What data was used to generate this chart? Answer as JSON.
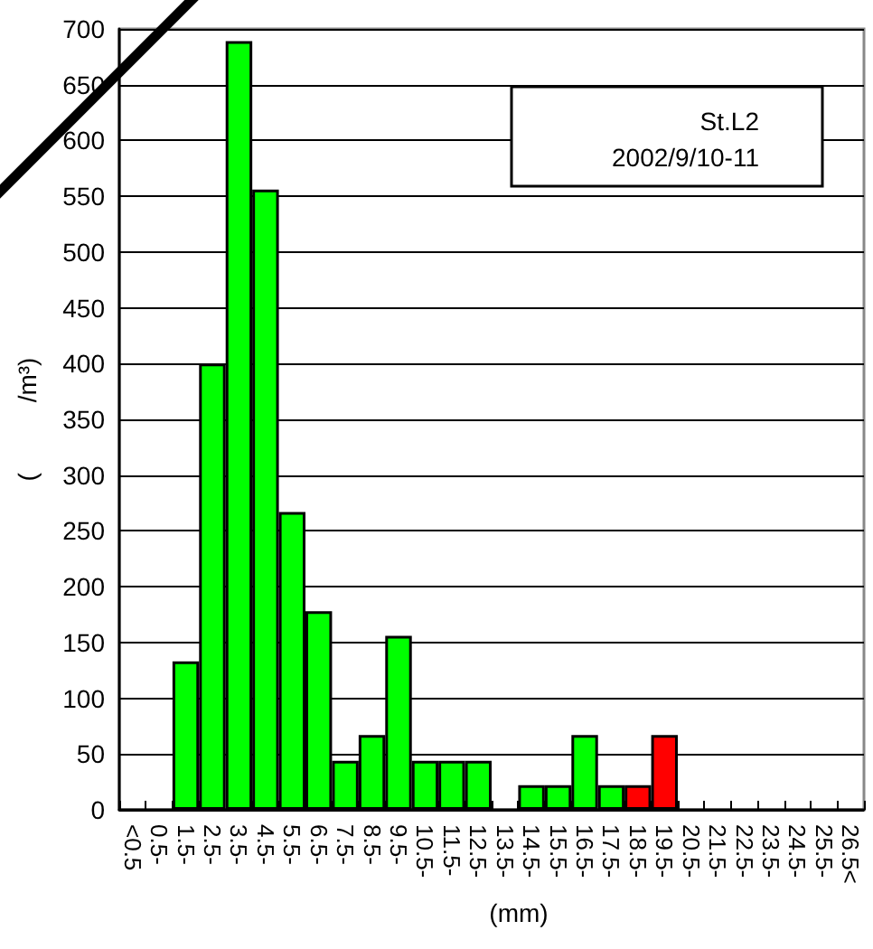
{
  "chart_data": {
    "type": "bar",
    "xlabel": "(mm)",
    "ylabel": "(          /m³)",
    "categories": [
      "<0.5",
      "0.5-",
      "1.5-",
      "2.5-",
      "3.5-",
      "4.5-",
      "5.5-",
      "6.5-",
      "7.5-",
      "8.5-",
      "9.5-",
      "10.5-",
      "11.5-",
      "12.5-",
      "13.5-",
      "14.5-",
      "15.5-",
      "16.5-",
      "17.5-",
      "18.5-",
      "19.5-",
      "20.5-",
      "21.5-",
      "22.5-",
      "23.5-",
      "24.5-",
      "25.5-",
      "26.5<"
    ],
    "values": [
      null,
      null,
      133,
      400,
      689,
      556,
      267,
      178,
      44,
      67,
      156,
      44,
      44,
      44,
      null,
      22,
      22,
      67,
      22,
      22,
      67,
      null,
      null,
      null,
      null,
      null,
      null,
      null
    ],
    "colors": [
      "#00ff00",
      "#00ff00",
      "#00ff00",
      "#00ff00",
      "#00ff00",
      "#00ff00",
      "#00ff00",
      "#00ff00",
      "#00ff00",
      "#00ff00",
      "#00ff00",
      "#00ff00",
      "#00ff00",
      "#00ff00",
      "#00ff00",
      "#00ff00",
      "#00ff00",
      "#00ff00",
      "#00ff00",
      "#ff0000",
      "#ff0000",
      "#00ff00",
      "#00ff00",
      "#00ff00",
      "#00ff00",
      "#00ff00",
      "#00ff00",
      "#00ff00"
    ],
    "ylim": [
      0,
      700
    ],
    "yticks": [
      0,
      50,
      100,
      150,
      200,
      250,
      300,
      350,
      400,
      450,
      500,
      550,
      600,
      650,
      700
    ],
    "grid": "y",
    "annotations": [
      "St.L2",
      "2002/9/10-11"
    ]
  }
}
